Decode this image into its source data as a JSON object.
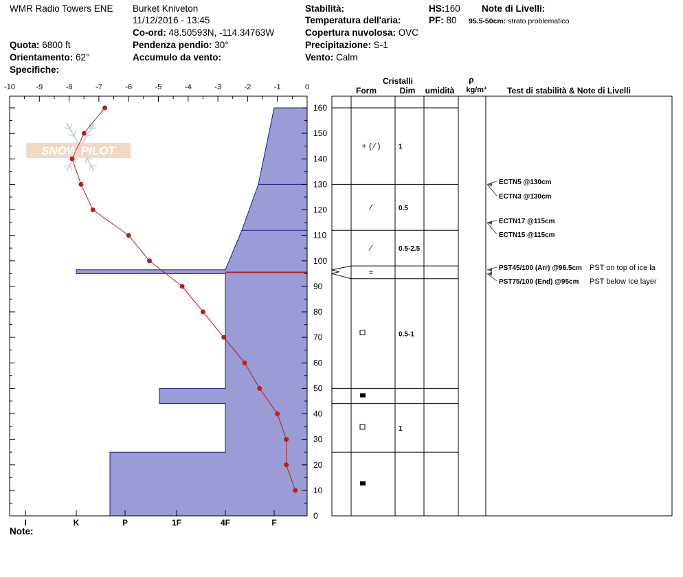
{
  "header": {
    "location": "WMR Radio Towers ENE",
    "observer": "Burket Kniveton",
    "datetime": "11/12/2016 - 13:45",
    "coord_label": "Co-ord:",
    "coord_value": "48.50593N, -114.34763W",
    "elevation_label": "Quota:",
    "elevation_value": "6800 ft",
    "aspect_label": "Orientamento:",
    "aspect_value": "62°",
    "specifics_label": "Specifiche:",
    "slope_label": "Pendenza pendio:",
    "slope_value": "30°",
    "wind_loading_label": "Accumulo da vento:",
    "stability_label": "Stabilità:",
    "air_temp_label": "Temperatura dell'aria:",
    "cloud_label": "Copertura nuvolosa:",
    "cloud_value": "OVC",
    "precip_label": "Precipitazione:",
    "precip_value": "S-1",
    "wind_label": "Vento:",
    "wind_value": "Calm",
    "hs_label": "HS:",
    "hs_value": "160",
    "pf_label": "PF:",
    "pf_value": "80",
    "layer_notes_label": "Note di Livelli:",
    "layer_note_range": "95.5-50cm:",
    "layer_note_text": "strato problematico"
  },
  "table_headers": {
    "cristalli": "Cristalli",
    "form": "Form",
    "dim": "Dim",
    "umidita": "umidità",
    "rho": "ρ",
    "density_unit": "kg/m³",
    "test_notes": "Test di stabilità & Note di Livelli"
  },
  "footer": {
    "note_label": "Note:"
  },
  "logo": {
    "text": "SNOW PILOT"
  },
  "colors": {
    "hardness_fill": "#9b9bd6",
    "hardness_stroke": "#1a1a8c",
    "temp_line": "#b22222",
    "ice_layer": "#2020a0"
  },
  "chart_data": {
    "type": "line",
    "temperature_axis": {
      "ticks": [
        "-10",
        "-9",
        "-8",
        "-7",
        "-6",
        "-5",
        "-4",
        "-3",
        "-2",
        "-1",
        "0"
      ],
      "min": -10,
      "max": 0
    },
    "height_axis": {
      "ticks": [
        "0",
        "10",
        "20",
        "30",
        "40",
        "50",
        "60",
        "70",
        "80",
        "90",
        "100",
        "110",
        "120",
        "130",
        "140",
        "150",
        "160"
      ],
      "min": 0,
      "max": 165
    },
    "hardness_axis": {
      "labels": [
        "I",
        "K",
        "P",
        "1F",
        "4F",
        "F"
      ]
    },
    "temperature_profile": [
      {
        "h": 160,
        "t": -6.8
      },
      {
        "h": 150,
        "t": -7.5
      },
      {
        "h": 140,
        "t": -7.9
      },
      {
        "h": 130,
        "t": -7.6
      },
      {
        "h": 120,
        "t": -7.2
      },
      {
        "h": 110,
        "t": -6.0
      },
      {
        "h": 100,
        "t": -5.3
      },
      {
        "h": 90,
        "t": -4.2
      },
      {
        "h": 80,
        "t": -3.5
      },
      {
        "h": 70,
        "t": -2.8
      },
      {
        "h": 60,
        "t": -2.1
      },
      {
        "h": 50,
        "t": -1.6
      },
      {
        "h": 40,
        "t": -1.0
      },
      {
        "h": 30,
        "t": -0.7
      },
      {
        "h": 20,
        "t": -0.7
      },
      {
        "h": 10,
        "t": -0.4
      }
    ],
    "hardness_profile": [
      {
        "top": 160,
        "bottom": 130,
        "hardness_top": "F",
        "hardness_bottom": "4F"
      },
      {
        "top": 130,
        "bottom": 112,
        "hardness_top": "4F",
        "hardness_bottom": "4F"
      },
      {
        "top": 112,
        "bottom": 96.5,
        "hardness_top": "4F",
        "hardness_bottom": "4F"
      },
      {
        "top": 96.5,
        "bottom": 95,
        "hardness_top": "I",
        "hardness_bottom": "I"
      },
      {
        "top": 95,
        "bottom": 50,
        "hardness_top": "4F",
        "hardness_bottom": "4F"
      },
      {
        "top": 50,
        "bottom": 44,
        "hardness_top": "1F",
        "hardness_bottom": "1F"
      },
      {
        "top": 44,
        "bottom": 25,
        "hardness_top": "4F",
        "hardness_bottom": "4F"
      },
      {
        "top": 25,
        "bottom": 0,
        "hardness_top": "P",
        "hardness_bottom": "P"
      }
    ],
    "layers": [
      {
        "top": 160,
        "bottom": 130,
        "form": "+ ( ⁄ )",
        "dim": "1"
      },
      {
        "top": 130,
        "bottom": 112,
        "form": "⁄",
        "dim": "0.5"
      },
      {
        "top": 112,
        "bottom": 98,
        "form": "⁄",
        "dim": "0.5-2.5"
      },
      {
        "top": 98,
        "bottom": 93,
        "form": "=",
        "dim": ""
      },
      {
        "top": 93,
        "bottom": 50,
        "form": "□",
        "dim": "0.5-1"
      },
      {
        "top": 50,
        "bottom": 44,
        "form": "■",
        "dim": ""
      },
      {
        "top": 44,
        "bottom": 25,
        "form": "□",
        "dim": "1"
      },
      {
        "top": 25,
        "bottom": 0,
        "form": "■",
        "dim": ""
      }
    ],
    "stability_tests": [
      {
        "height": 130,
        "label": "ECTN5 @130cm",
        "note": ""
      },
      {
        "height": 130,
        "label": "ECTN3 @130cm",
        "note": ""
      },
      {
        "height": 115,
        "label": "ECTN17 @115cm",
        "note": ""
      },
      {
        "height": 115,
        "label": "ECTN15 @115cm",
        "note": ""
      },
      {
        "height": 96.5,
        "label": "PST45/100 (Arr) @96.5cm",
        "note": "PST on top of ice la"
      },
      {
        "height": 95,
        "label": "PST75/100 (End) @95cm",
        "note": "PST below Ice layer"
      }
    ]
  }
}
